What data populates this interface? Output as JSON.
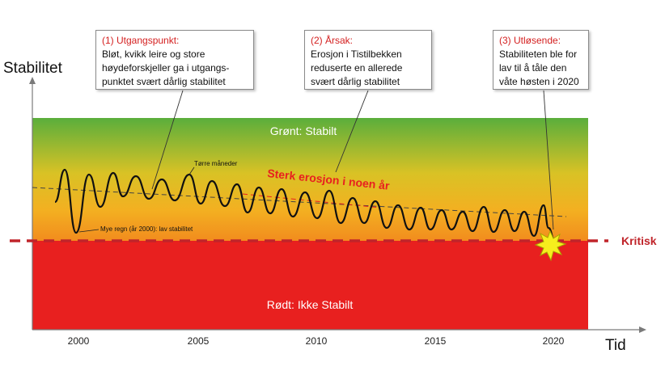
{
  "y_axis_label": "Stabilitet",
  "x_axis_label": "Tid",
  "zones": {
    "green_label": "Grønt: Stabilt",
    "red_label": "Rødt: Ikke Stabilt"
  },
  "critical_label": "Kritisk",
  "erosion_label": "Sterk erosjon i noen år",
  "annotations": {
    "dry_months": "Tørre måneder",
    "heavy_rain": "Mye regn (år 2000): lav stabilitet"
  },
  "callouts": [
    {
      "heading": "(1) Utgangspunkt:",
      "text": "Bløt, kvikk leire og store høydeforskjeller ga i utgangs-punktet svært dårlig stabilitet"
    },
    {
      "heading": "(2) Årsak:",
      "text": "Erosjon i Tistilbekken reduserte en allerede svært dårlig stabilitet"
    },
    {
      "heading": "(3) Utløsende:",
      "text": "Stabiliteten ble for lav til å tåle den våte høsten i 2020"
    }
  ],
  "x_ticks": [
    "2000",
    "2005",
    "2010",
    "2015",
    "2020"
  ],
  "colors": {
    "green": "#5aae3c",
    "yellow": "#f3c321",
    "orange": "#f2951e",
    "red": "#e8201f",
    "critical_line": "#c0242a",
    "erosion_text": "#e8201f",
    "callout_heading": "#d42020"
  },
  "icons": [
    "burst-icon"
  ]
}
